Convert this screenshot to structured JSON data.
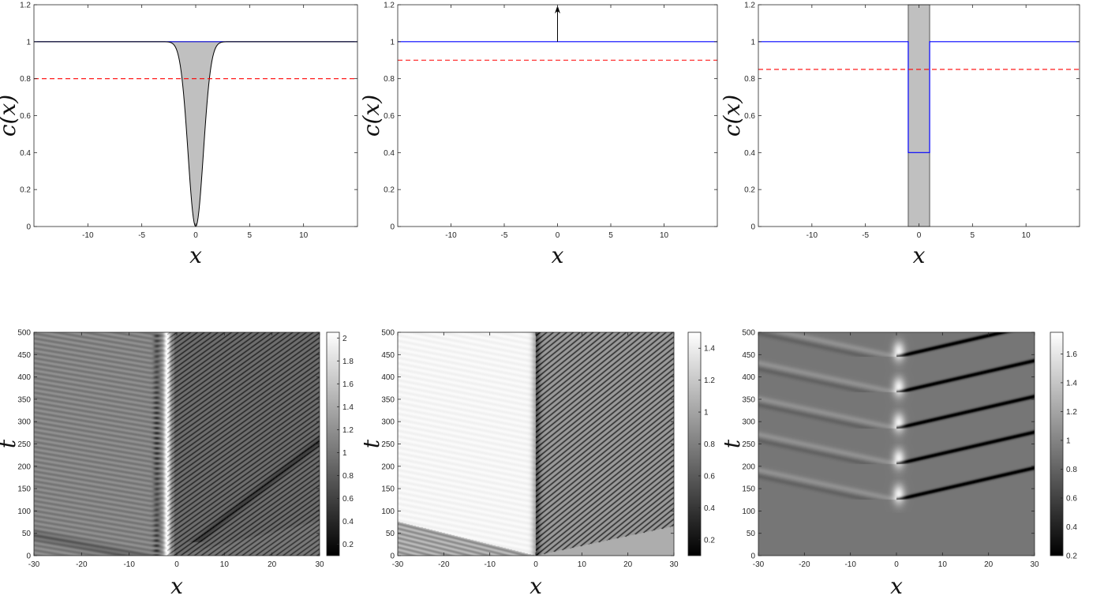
{
  "chart_data": [
    {
      "id": "p1",
      "type": "line",
      "xlabel": "x",
      "ylabel": "c(x)",
      "xlim": [
        -15,
        15
      ],
      "ylim": [
        0,
        1.2
      ],
      "xticks": [
        -10,
        -5,
        0,
        5,
        10
      ],
      "xtick_labels": [
        "-10",
        "-5",
        "0",
        "5",
        "10"
      ],
      "yticks": [
        0,
        0.2,
        0.4,
        0.6,
        0.8,
        1,
        1.2
      ],
      "ytick_labels": [
        "0",
        "0.2",
        "0.4",
        "0.6",
        "0.8",
        "1",
        "1.2"
      ],
      "series": [
        {
          "kind": "gaussian_dip",
          "level": 1,
          "depth": 1,
          "width": 1,
          "center": 0,
          "color": "#0000cc",
          "fill": "#c0c0c0"
        },
        {
          "kind": "hline",
          "y": 0.8,
          "style": "dashed",
          "color": "#ff0000"
        }
      ]
    },
    {
      "id": "p2",
      "type": "line",
      "xlabel": "x",
      "ylabel": "c(x)",
      "xlim": [
        -15,
        15
      ],
      "ylim": [
        0,
        1.2
      ],
      "xticks": [
        -10,
        -5,
        0,
        5,
        10
      ],
      "xtick_labels": [
        "-10",
        "-5",
        "0",
        "5",
        "10"
      ],
      "yticks": [
        0,
        0.2,
        0.4,
        0.6,
        0.8,
        1,
        1.2
      ],
      "ytick_labels": [
        "0",
        "0.2",
        "0.4",
        "0.6",
        "0.8",
        "1",
        "1.2"
      ],
      "series": [
        {
          "kind": "hline",
          "y": 1,
          "style": "solid",
          "color": "#0000ff"
        },
        {
          "kind": "hline",
          "y": 0.9,
          "style": "dashed",
          "color": "#ff0000"
        },
        {
          "kind": "arrow",
          "x": 0,
          "y0": 1,
          "y1": 1.2,
          "color": "#000000"
        }
      ]
    },
    {
      "id": "p3",
      "type": "line",
      "xlabel": "x",
      "ylabel": "c(x)",
      "xlim": [
        -15,
        15
      ],
      "ylim": [
        0,
        1.2
      ],
      "xticks": [
        -10,
        -5,
        0,
        5,
        10
      ],
      "xtick_labels": [
        "-10",
        "-5",
        "0",
        "5",
        "10"
      ],
      "yticks": [
        0,
        0.2,
        0.4,
        0.6,
        0.8,
        1,
        1.2
      ],
      "ytick_labels": [
        "0",
        "0.2",
        "0.4",
        "0.6",
        "0.8",
        "1",
        "1.2"
      ],
      "series": [
        {
          "kind": "step",
          "level": 1,
          "well_level": 0.4,
          "x0": -1,
          "x1": 1,
          "color": "#0000ff",
          "fill": "#c0c0c0"
        },
        {
          "kind": "hline",
          "y": 0.85,
          "style": "dashed",
          "color": "#ff0000"
        }
      ]
    },
    {
      "id": "h1",
      "type": "heatmap",
      "xlabel": "x",
      "ylabel": "t",
      "xlim": [
        -30,
        30
      ],
      "ylim": [
        0,
        500
      ],
      "xticks": [
        -30,
        -20,
        -10,
        0,
        10,
        20,
        30
      ],
      "xtick_labels": [
        "-30",
        "-20",
        "-10",
        "0",
        "10",
        "20",
        "30"
      ],
      "yticks": [
        0,
        50,
        100,
        150,
        200,
        250,
        300,
        350,
        400,
        450,
        500
      ],
      "ytick_labels": [
        "0",
        "50",
        "100",
        "150",
        "200",
        "250",
        "300",
        "350",
        "400",
        "450",
        "500"
      ],
      "colorbar": {
        "min": 0.1,
        "max": 2.05,
        "ticks": [
          0.2,
          0.4,
          0.6,
          0.8,
          1,
          1.2,
          1.4,
          1.6,
          1.8,
          2
        ],
        "tick_labels": [
          "0.2",
          "0.4",
          "0.6",
          "0.8",
          "1",
          "1.2",
          "1.4",
          "1.6",
          "1.8",
          "2"
        ]
      },
      "colormap": "gray",
      "features": {
        "defect_x": -2,
        "right_soliton_period": 11,
        "right_soliton_speed": 0.13,
        "left_level": 1.1
      }
    },
    {
      "id": "h2",
      "type": "heatmap",
      "xlabel": "x",
      "ylabel": "t",
      "xlim": [
        -30,
        30
      ],
      "ylim": [
        0,
        500
      ],
      "xticks": [
        -30,
        -20,
        -10,
        0,
        10,
        20,
        30
      ],
      "xtick_labels": [
        "-30",
        "-20",
        "-10",
        "0",
        "10",
        "20",
        "30"
      ],
      "yticks": [
        0,
        50,
        100,
        150,
        200,
        250,
        300,
        350,
        400,
        450,
        500
      ],
      "ytick_labels": [
        "0",
        "50",
        "100",
        "150",
        "200",
        "250",
        "300",
        "350",
        "400",
        "450",
        "500"
      ],
      "colorbar": {
        "min": 0.1,
        "max": 1.5,
        "ticks": [
          0.2,
          0.4,
          0.6,
          0.8,
          1,
          1.2,
          1.4
        ],
        "tick_labels": [
          "0.2",
          "0.4",
          "0.6",
          "0.8",
          "1",
          "1.2",
          "1.4"
        ]
      },
      "colormap": "gray",
      "features": {
        "defect_x": 0,
        "right_soliton_period": 12,
        "right_soliton_speed": 0.12,
        "left_level": 1.45
      }
    },
    {
      "id": "h3",
      "type": "heatmap",
      "xlabel": "x",
      "ylabel": "t",
      "xlim": [
        -30,
        30
      ],
      "ylim": [
        0,
        500
      ],
      "xticks": [
        -30,
        -20,
        -10,
        0,
        10,
        20,
        30
      ],
      "xtick_labels": [
        "-30",
        "-20",
        "-10",
        "0",
        "10",
        "20",
        "30"
      ],
      "yticks": [
        0,
        50,
        100,
        150,
        200,
        250,
        300,
        350,
        400,
        450,
        500
      ],
      "ytick_labels": [
        "0",
        "50",
        "100",
        "150",
        "200",
        "250",
        "300",
        "350",
        "400",
        "450",
        "500"
      ],
      "colorbar": {
        "min": 0.2,
        "max": 1.75,
        "ticks": [
          0.2,
          0.4,
          0.6,
          0.8,
          1,
          1.2,
          1.4,
          1.6
        ],
        "tick_labels": [
          "0.2",
          "0.4",
          "0.6",
          "0.8",
          "1",
          "1.2",
          "1.4",
          "1.6"
        ]
      },
      "colormap": "gray",
      "features": {
        "defect_x": 0,
        "emission_times": [
          125,
          205,
          285,
          365,
          445
        ],
        "soliton_speed": 0.42,
        "background_level": 0.92
      }
    }
  ]
}
